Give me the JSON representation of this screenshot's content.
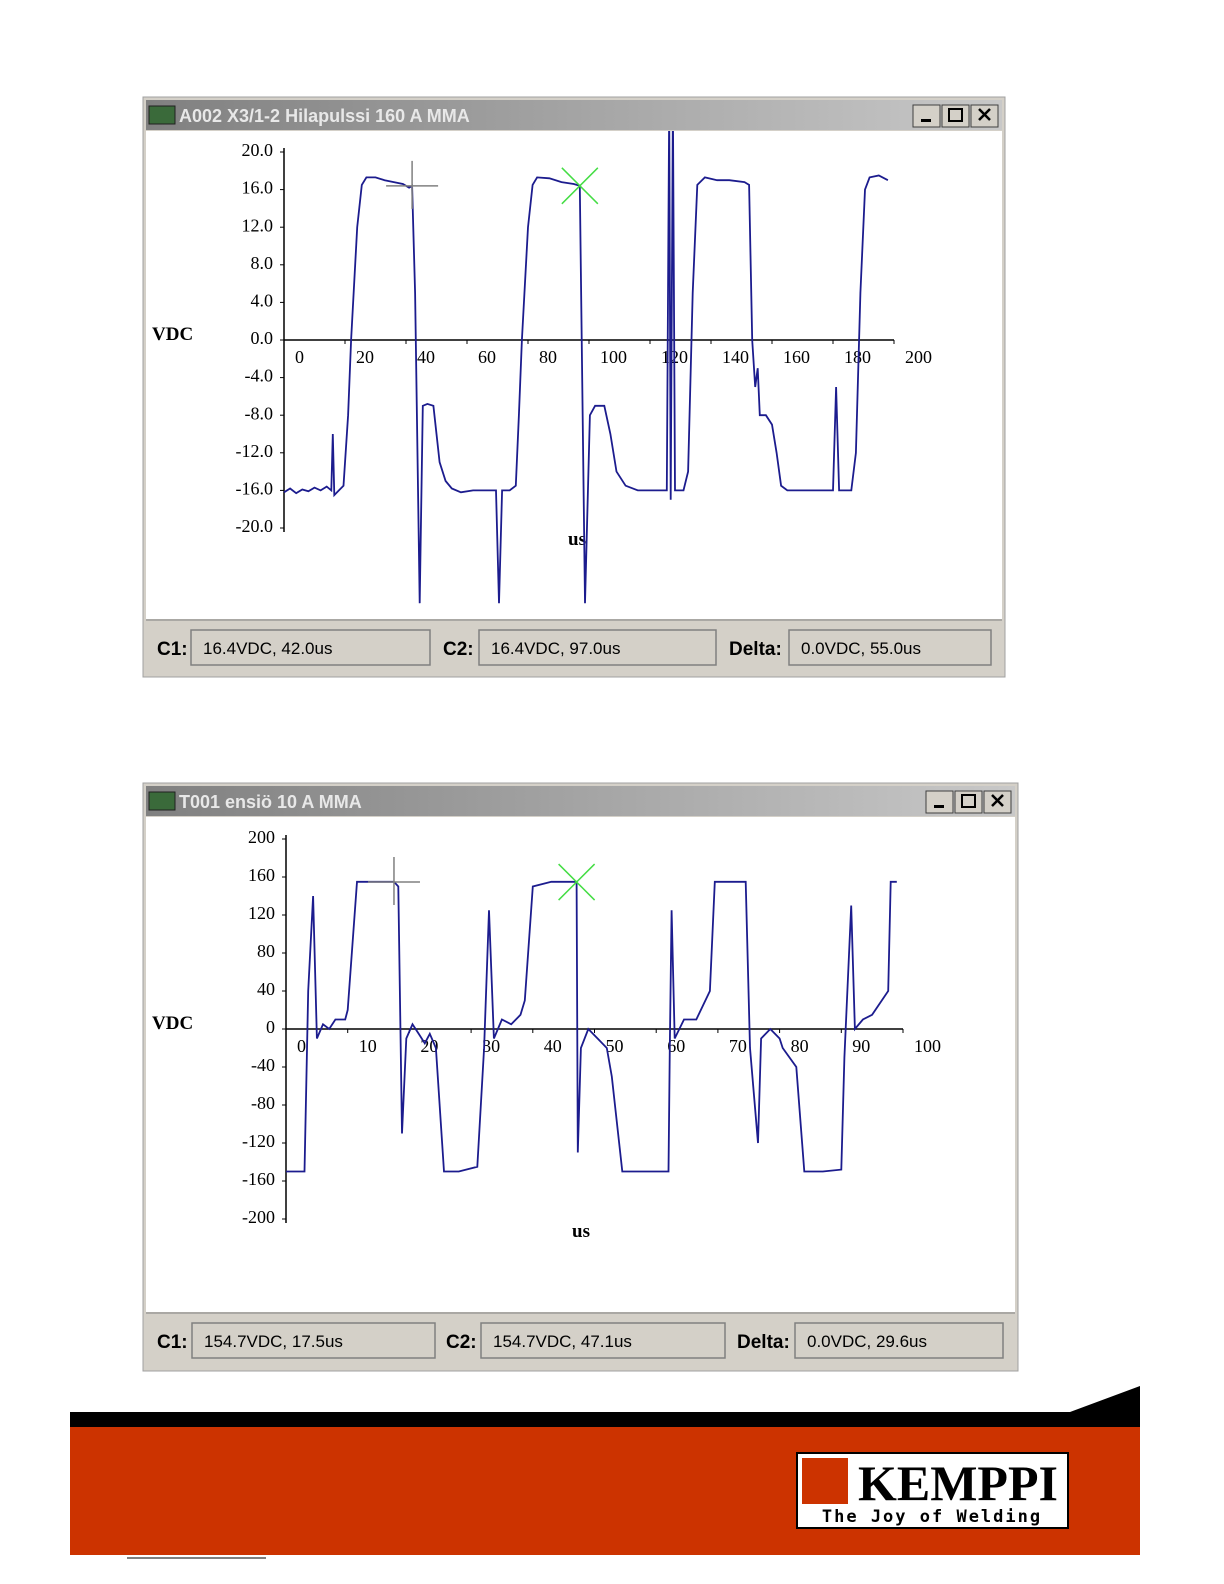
{
  "chart_data": [
    {
      "type": "line",
      "title": "A002 X3/1-2 Hilapulssi 160 A MMA",
      "y_label": "VDC",
      "x_label": "us",
      "color": "#1c1c8e",
      "xlim": [
        0,
        200
      ],
      "ylim": [
        -20,
        20
      ],
      "xticks": [
        0,
        20,
        40,
        60,
        80,
        100,
        120,
        140,
        160,
        180,
        200
      ],
      "yticks": [
        {
          "value": 20,
          "label": "20.0"
        },
        {
          "value": 16,
          "label": "16.0"
        },
        {
          "value": 12,
          "label": "12.0"
        },
        {
          "value": 8,
          "label": "8.0"
        },
        {
          "value": 4,
          "label": "4.0"
        },
        {
          "value": 0,
          "label": "0.0"
        },
        {
          "value": -4,
          "label": "-4.0"
        },
        {
          "value": -8,
          "label": "-8.0"
        },
        {
          "value": -12,
          "label": "-12.0"
        },
        {
          "value": -16,
          "label": "-16.0"
        },
        {
          "value": -20,
          "label": "-20.0"
        }
      ],
      "x": [
        0,
        2,
        4,
        6,
        8,
        10,
        12,
        14,
        15.5,
        16,
        16.5,
        18,
        19.5,
        21,
        22,
        24,
        25.5,
        27,
        30,
        33,
        36,
        39,
        41,
        42,
        43,
        44.5,
        45.5,
        47,
        49,
        50,
        51,
        53,
        55,
        58,
        62,
        66,
        69.5,
        70.5,
        71.5,
        74,
        76,
        77,
        78,
        80,
        81.5,
        83,
        87,
        91,
        95,
        97,
        98.7,
        100.3,
        102,
        105,
        107,
        109,
        112,
        116,
        120,
        125.5,
        126.3,
        126.8,
        127.5,
        128.2,
        131,
        132.5,
        134,
        135.5,
        138,
        142,
        146,
        151,
        152.5,
        153.5,
        154.5,
        155.3,
        156,
        158,
        160,
        161.5,
        163,
        165,
        170,
        175,
        180,
        181,
        182,
        186,
        187.5,
        189,
        190.5,
        192,
        195,
        198
      ],
      "values": [
        -16.2,
        -15.8,
        -16.3,
        -15.9,
        -16.1,
        -15.7,
        -16,
        -15.6,
        -16,
        -10,
        -16.5,
        -16,
        -15.5,
        -8,
        0,
        12,
        16.5,
        17.3,
        17.3,
        17,
        16.8,
        16.6,
        16.2,
        16.4,
        5,
        -28,
        -7,
        -6.8,
        -7,
        -10,
        -13,
        -15,
        -15.8,
        -16.2,
        -16,
        -16,
        -16,
        -28,
        -16,
        -16,
        -15.5,
        -8,
        0,
        12,
        16.5,
        17.3,
        17.2,
        16.8,
        16.6,
        16.4,
        -28,
        -8,
        -7,
        -7,
        -10,
        -14,
        -15.5,
        -16,
        -16,
        -16,
        25,
        -17,
        25,
        -16,
        -16,
        -14,
        5,
        16.5,
        17.3,
        17,
        17,
        16.8,
        16.5,
        0,
        -5,
        -3,
        -8,
        -8,
        -9,
        -12,
        -15.5,
        -16,
        -16,
        -16,
        -16,
        -5,
        -16,
        -16,
        -12,
        5,
        16,
        17.3,
        17.5,
        17
      ],
      "cursors": [
        {
          "x": 42,
          "y": 16.4,
          "color": "#808080",
          "shape": "plus"
        },
        {
          "x": 97,
          "y": 16.4,
          "color": "#44dd44",
          "shape": "cross"
        }
      ]
    },
    {
      "type": "line",
      "title": "T001 ensiö 10 A MMA",
      "y_label": "VDC",
      "x_label": "us",
      "color": "#1c1c8e",
      "xlim": [
        0,
        100
      ],
      "ylim": [
        -200,
        200
      ],
      "xticks": [
        0,
        10,
        20,
        30,
        40,
        50,
        60,
        70,
        80,
        90,
        100
      ],
      "yticks": [
        200,
        160,
        120,
        80,
        40,
        0,
        -40,
        -80,
        -120,
        -160,
        -200
      ],
      "x": [
        0,
        3,
        3.6,
        4.4,
        5,
        6,
        7,
        8,
        9.6,
        10,
        11.5,
        14,
        17.5,
        18.2,
        18.8,
        19.5,
        20.5,
        21.5,
        22.5,
        23.3,
        24.3,
        25.6,
        28,
        31,
        32.1,
        32.9,
        33.7,
        35,
        36.5,
        38,
        38.7,
        40,
        43,
        47.1,
        47.3,
        47.8,
        49,
        50.5,
        52,
        52.8,
        54.5,
        58,
        62,
        62.2,
        62.5,
        63,
        64.5,
        66.5,
        68.7,
        69.5,
        72,
        74.5,
        75.2,
        76.5,
        77,
        78.5,
        80,
        80.5,
        82.7,
        84,
        87,
        90,
        90.5,
        91.6,
        92.2,
        93.5,
        95,
        97.6,
        98,
        99
      ],
      "values": [
        -150,
        -150,
        40,
        140,
        -10,
        5,
        0,
        10,
        10,
        20,
        155,
        155,
        155,
        150,
        -110,
        -10,
        5,
        -5,
        -15,
        -5,
        -20,
        -150,
        -150,
        -145,
        -20,
        125,
        -10,
        10,
        5,
        15,
        30,
        150,
        155,
        155,
        -130,
        -20,
        0,
        -10,
        -20,
        -50,
        -150,
        -150,
        -150,
        -20,
        125,
        -10,
        10,
        10,
        40,
        155,
        155,
        155,
        -20,
        -120,
        -10,
        0,
        -10,
        -20,
        -40,
        -150,
        -150,
        -148,
        -30,
        130,
        0,
        10,
        15,
        40,
        155,
        155
      ],
      "cursors": [
        {
          "x": 17.5,
          "y": 154.7,
          "color": "#808080",
          "shape": "plus"
        },
        {
          "x": 47.1,
          "y": 154.7,
          "color": "#44dd44",
          "shape": "cross"
        }
      ]
    }
  ],
  "status_bars": [
    [
      {
        "label": "C1:",
        "value": "16.4VDC,  42.0us"
      },
      {
        "label": "C2:",
        "value": "16.4VDC,  97.0us"
      },
      {
        "label": "Delta:",
        "value": "0.0VDC,  55.0us"
      }
    ],
    [
      {
        "label": "C1:",
        "value": "154.7VDC,  17.5us"
      },
      {
        "label": "C2:",
        "value": "154.7VDC,  47.1us"
      },
      {
        "label": "Delta:",
        "value": "0.0VDC,  29.6us"
      }
    ]
  ],
  "footer": {
    "brand": "KEMPPI",
    "slogan": "The Joy of Welding"
  }
}
